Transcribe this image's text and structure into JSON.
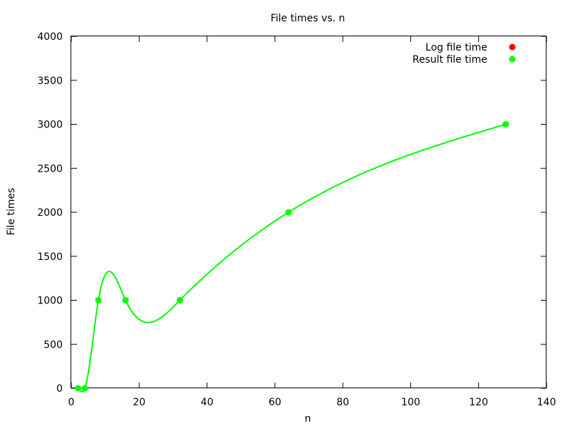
{
  "chart_data": {
    "type": "line",
    "title": "File times vs. n",
    "xlabel": "n",
    "ylabel": "File times",
    "xlim": [
      0,
      140
    ],
    "ylim": [
      0,
      4000
    ],
    "xticks": [
      "0",
      "20",
      "40",
      "60",
      "80",
      "100",
      "120",
      "140"
    ],
    "yticks": [
      "0",
      "500",
      "1000",
      "1500",
      "2000",
      "2500",
      "3000",
      "3500",
      "4000"
    ],
    "grid": false,
    "legend_position": "top-right",
    "series": [
      {
        "name": "Log file time",
        "color": "#ff0000",
        "x": [],
        "values": []
      },
      {
        "name": "Result file time",
        "color": "#00ff00",
        "x": [
          2,
          4,
          8,
          16,
          32,
          64,
          128
        ],
        "values": [
          0,
          0,
          1000,
          1000,
          1000,
          2000,
          3000
        ]
      }
    ]
  }
}
